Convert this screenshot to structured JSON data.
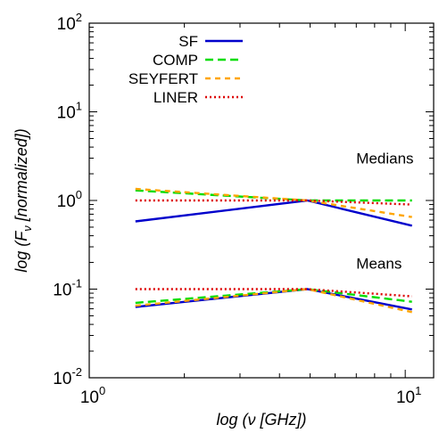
{
  "chart_data": {
    "type": "line",
    "xlabel": "log (ν [GHz])",
    "ylabel_prefix": "log (F",
    "ylabel_sub": "ν",
    "ylabel_suffix": " [normalized])",
    "xscale": "log",
    "yscale": "log",
    "xlim": [
      1,
      12.3
    ],
    "ylim": [
      0.01,
      100
    ],
    "x_ticks": [
      {
        "base": "10",
        "exp": "0",
        "value": 1
      },
      {
        "base": "10",
        "exp": "1",
        "value": 10
      }
    ],
    "y_ticks": [
      {
        "base": "10",
        "exp": "2",
        "value": 100
      },
      {
        "base": "10",
        "exp": "1",
        "value": 10
      },
      {
        "base": "10",
        "exp": "0",
        "value": 1
      },
      {
        "base": "10",
        "exp": "-1",
        "value": 0.1
      },
      {
        "base": "10",
        "exp": "-2",
        "value": 0.01
      }
    ],
    "legend_position": "top-left",
    "grid": false,
    "annotations": [
      {
        "text": "Medians",
        "x": 7.0,
        "y": 2.6
      },
      {
        "text": "Means",
        "x": 7.0,
        "y": 0.17
      }
    ],
    "series": [
      {
        "name": "SF",
        "color": "#0000cc",
        "dash": "solid",
        "medians": {
          "x": [
            1.4,
            4.9,
            10.5
          ],
          "y": [
            0.58,
            1.0,
            0.52
          ]
        },
        "means": {
          "x": [
            1.4,
            4.9,
            10.5
          ],
          "y": [
            0.063,
            0.1,
            0.059
          ]
        }
      },
      {
        "name": "COMP",
        "color": "#00dd00",
        "dash": "dashed",
        "medians": {
          "x": [
            1.4,
            4.9,
            10.5
          ],
          "y": [
            1.3,
            1.0,
            1.0
          ]
        },
        "means": {
          "x": [
            1.4,
            4.9,
            10.5
          ],
          "y": [
            0.07,
            0.1,
            0.072
          ]
        }
      },
      {
        "name": "SEYFERT",
        "color": "#ffa500",
        "dash": "short-dashed",
        "medians": {
          "x": [
            1.4,
            4.9,
            10.5
          ],
          "y": [
            1.35,
            1.0,
            0.65
          ]
        },
        "means": {
          "x": [
            1.4,
            4.9,
            10.5
          ],
          "y": [
            0.065,
            0.1,
            0.055
          ]
        }
      },
      {
        "name": "LINER",
        "color": "#dd0000",
        "dash": "dotted",
        "medians": {
          "x": [
            1.4,
            4.9,
            10.5
          ],
          "y": [
            1.0,
            1.0,
            0.9
          ]
        },
        "means": {
          "x": [
            1.4,
            4.9,
            10.5
          ],
          "y": [
            0.1,
            0.1,
            0.083
          ]
        }
      }
    ]
  }
}
